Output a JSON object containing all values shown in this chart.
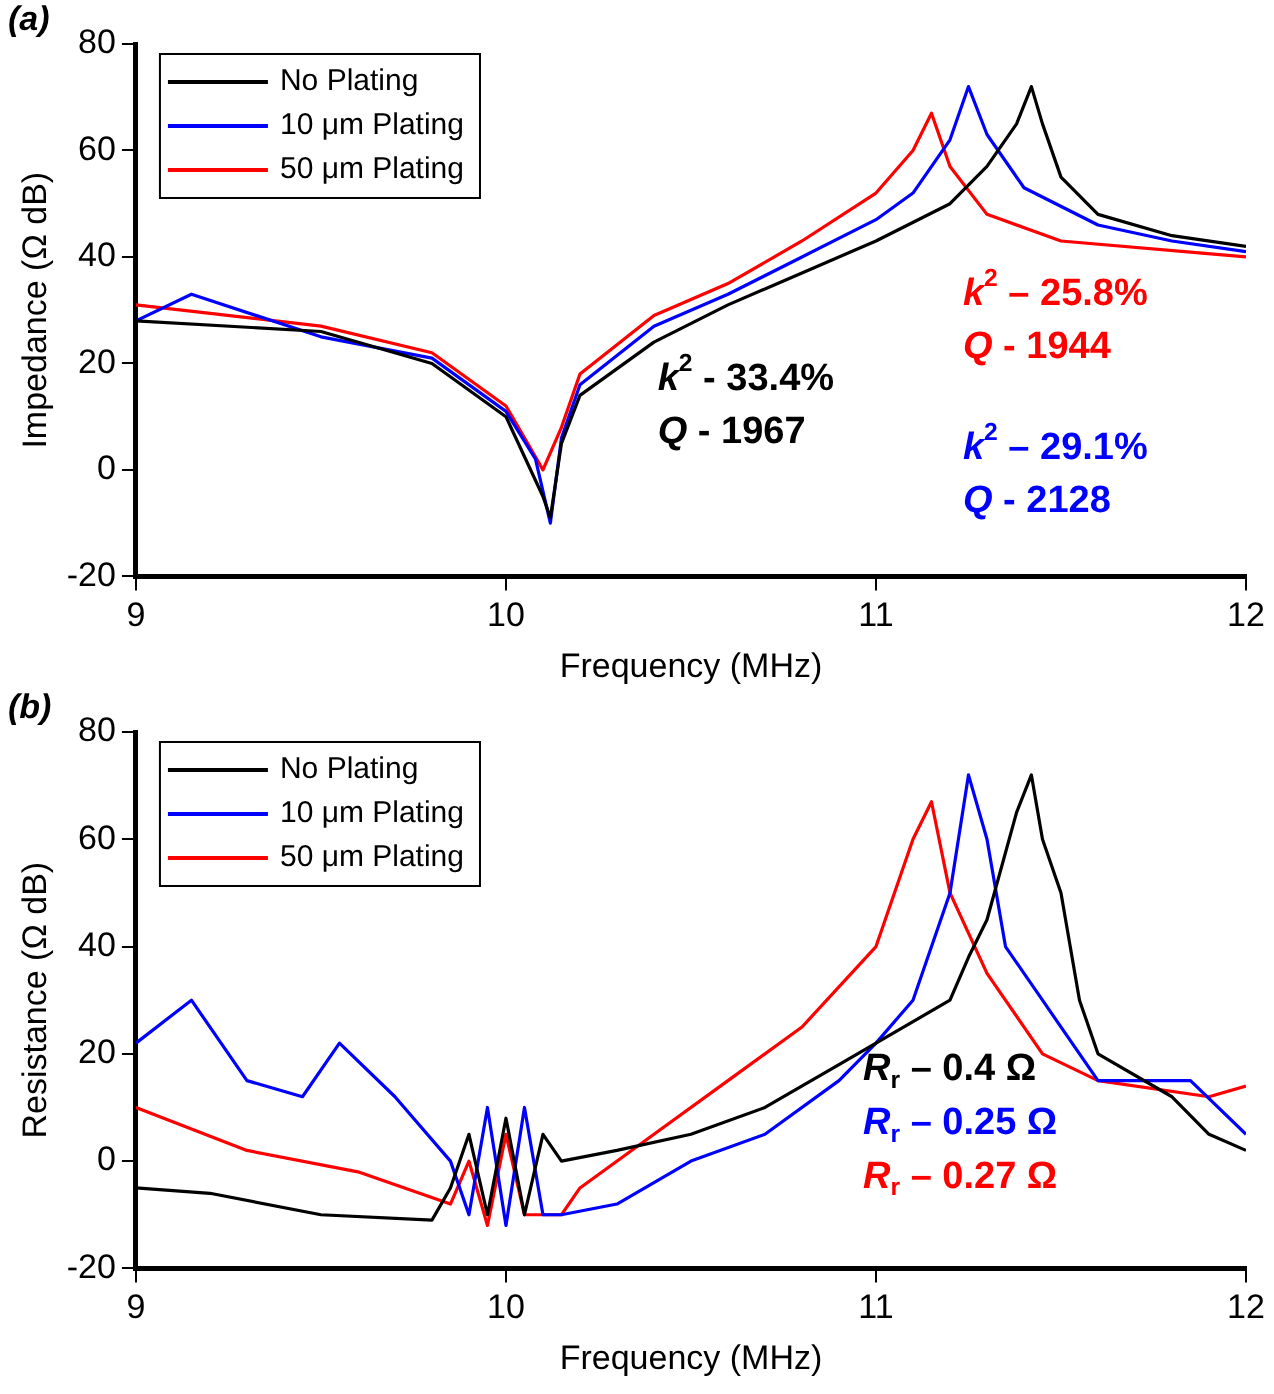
{
  "chart_data": [
    {
      "type": "line",
      "title": "(a)",
      "xlabel": "Frequency (MHz)",
      "ylabel": "Impedance (Ω dB)",
      "xlim": [
        9,
        12
      ],
      "xticks": [
        9,
        10,
        11,
        12
      ],
      "ylim": [
        -20,
        80
      ],
      "yticks": [
        -20,
        0,
        20,
        40,
        60,
        80
      ],
      "grid": false,
      "legend": "top left",
      "marker": "none",
      "line_style": "solid",
      "annotations": [
        "k$^{2}$ - 33.4%",
        "Q - 1967",
        "k$^{2}$ – 25.8%",
        "Q - 1944",
        "k$^{2}$ – 29.1%",
        "Q - 2128"
      ],
      "series": [
        {
          "name": "No Plating",
          "color": "#000000",
          "x": [
            9,
            9.5,
            9.8,
            10,
            10.1,
            10.12,
            10.15,
            10.2,
            10.4,
            10.6,
            10.8,
            11,
            11.2,
            11.3,
            11.38,
            11.42,
            11.45,
            11.5,
            11.6,
            11.8,
            12
          ],
          "values": [
            28,
            26,
            20,
            10,
            -5,
            -9,
            5,
            14,
            24,
            31,
            37,
            43,
            50,
            57,
            65,
            72,
            65,
            55,
            48,
            44,
            42
          ]
        },
        {
          "name": "10 μm Plating",
          "color": "#0000ff",
          "x": [
            9,
            9.15,
            9.5,
            9.8,
            10,
            10.08,
            10.12,
            10.15,
            10.2,
            10.4,
            10.6,
            10.8,
            11,
            11.1,
            11.2,
            11.25,
            11.3,
            11.4,
            11.6,
            11.8,
            12
          ],
          "values": [
            28,
            33,
            25,
            21,
            11,
            2,
            -10,
            6,
            16,
            27,
            33,
            40,
            47,
            52,
            62,
            72,
            63,
            53,
            46,
            43,
            41
          ]
        },
        {
          "name": "50 μm Plating",
          "color": "#ff0000",
          "x": [
            9,
            9.5,
            9.8,
            10,
            10.1,
            10.15,
            10.2,
            10.4,
            10.6,
            10.8,
            11,
            11.1,
            11.15,
            11.2,
            11.3,
            11.5,
            12
          ],
          "values": [
            31,
            27,
            22,
            12,
            0,
            8,
            18,
            29,
            35,
            43,
            52,
            60,
            67,
            57,
            48,
            43,
            40
          ]
        }
      ]
    },
    {
      "type": "line",
      "title": "(b)",
      "xlabel": "Frequency (MHz)",
      "ylabel": "Resistance (Ω dB)",
      "xlim": [
        9,
        12
      ],
      "xticks": [
        9,
        10,
        11,
        12
      ],
      "ylim": [
        -20,
        80
      ],
      "yticks": [
        -20,
        0,
        20,
        40,
        60,
        80
      ],
      "grid": false,
      "legend": "top left",
      "marker": "none",
      "line_style": "solid",
      "annotations": [
        "R$_{r}$ – 0.4 Ω",
        "R$_{r}$ – 0.25 Ω",
        "R$_{r}$ – 0.27 Ω"
      ],
      "series": [
        {
          "name": "No Plating",
          "color": "#000000",
          "x": [
            9,
            9.2,
            9.5,
            9.8,
            9.85,
            9.9,
            9.95,
            10,
            10.05,
            10.1,
            10.15,
            10.3,
            10.5,
            10.7,
            10.9,
            11,
            11.2,
            11.25,
            11.3,
            11.38,
            11.42,
            11.45,
            11.5,
            11.55,
            11.6,
            11.8,
            11.9,
            12
          ],
          "values": [
            -5,
            -6,
            -10,
            -11,
            -5,
            5,
            -10,
            8,
            -10,
            5,
            0,
            2,
            5,
            10,
            18,
            22,
            30,
            38,
            45,
            65,
            72,
            60,
            50,
            30,
            20,
            12,
            5,
            2
          ]
        },
        {
          "name": "10 μm Plating",
          "color": "#0000ff",
          "x": [
            9,
            9.15,
            9.3,
            9.45,
            9.55,
            9.7,
            9.85,
            9.9,
            9.95,
            10,
            10.05,
            10.1,
            10.15,
            10.3,
            10.5,
            10.7,
            10.9,
            11,
            11.1,
            11.2,
            11.25,
            11.3,
            11.35,
            11.45,
            11.6,
            11.85,
            12
          ],
          "values": [
            22,
            30,
            15,
            12,
            22,
            12,
            0,
            -10,
            10,
            -12,
            10,
            -10,
            -10,
            -8,
            0,
            5,
            15,
            22,
            30,
            50,
            72,
            60,
            40,
            30,
            15,
            15,
            5
          ]
        },
        {
          "name": "50 μm Plating",
          "color": "#ff0000",
          "x": [
            9,
            9.3,
            9.6,
            9.85,
            9.9,
            9.95,
            10,
            10.05,
            10.15,
            10.2,
            10.4,
            10.6,
            10.8,
            11,
            11.1,
            11.15,
            11.2,
            11.3,
            11.45,
            11.6,
            11.9,
            12
          ],
          "values": [
            10,
            2,
            -2,
            -8,
            0,
            -12,
            5,
            -10,
            -10,
            -5,
            5,
            15,
            25,
            40,
            60,
            67,
            50,
            35,
            20,
            15,
            12,
            14
          ]
        }
      ]
    }
  ]
}
